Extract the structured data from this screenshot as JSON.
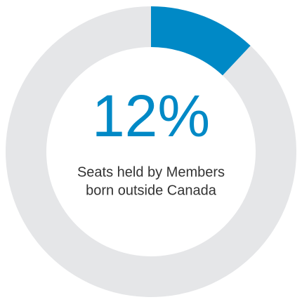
{
  "chart_data": {
    "type": "donut",
    "values": [
      12,
      88
    ],
    "value_labels": [
      "12%",
      null
    ],
    "colors": [
      "#0089c6",
      "#e5e6e8"
    ],
    "caption": [
      "Seats held by Members",
      "born outside Canada"
    ]
  }
}
